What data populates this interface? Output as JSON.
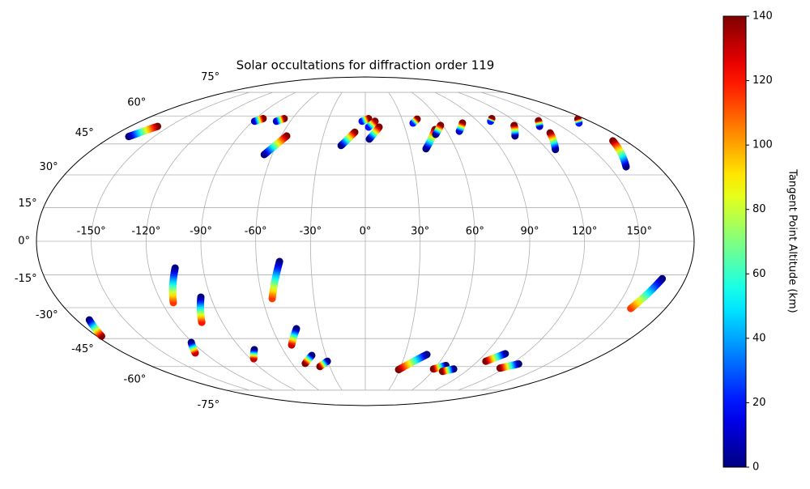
{
  "chart_data": {
    "type": "scatter",
    "projection": "mollweide",
    "title": "Solar occultations for diffraction order 119",
    "xlim": [
      -180,
      180
    ],
    "ylim": [
      -90,
      90
    ],
    "xticks": [
      {
        "value": -150,
        "label": "-150°"
      },
      {
        "value": -120,
        "label": "-120°"
      },
      {
        "value": -90,
        "label": "-90°"
      },
      {
        "value": -60,
        "label": "-60°"
      },
      {
        "value": -30,
        "label": "-30°"
      },
      {
        "value": 0,
        "label": "0°"
      },
      {
        "value": 30,
        "label": "30°"
      },
      {
        "value": 60,
        "label": "60°"
      },
      {
        "value": 90,
        "label": "90°"
      },
      {
        "value": 120,
        "label": "120°"
      },
      {
        "value": 150,
        "label": "150°"
      }
    ],
    "yticks": [
      {
        "value": -75,
        "label": "-75°"
      },
      {
        "value": -60,
        "label": "-60°"
      },
      {
        "value": -45,
        "label": "-45°"
      },
      {
        "value": -30,
        "label": "-30°"
      },
      {
        "value": -15,
        "label": "-15°"
      },
      {
        "value": 0,
        "label": "0°"
      },
      {
        "value": 15,
        "label": "15°"
      },
      {
        "value": 30,
        "label": "30°"
      },
      {
        "value": 45,
        "label": "45°"
      },
      {
        "value": 60,
        "label": "60°"
      },
      {
        "value": 75,
        "label": "75°"
      }
    ],
    "grid": true,
    "colormap": "jet",
    "colorbar_label": "Tangent Point Altitude (km)",
    "clim": [
      0,
      140
    ],
    "cticks": [
      0,
      20,
      40,
      60,
      80,
      100,
      120,
      140
    ],
    "tracks": [
      {
        "lon": [
          -168,
          -159
        ],
        "lat": [
          48.8,
          54.2
        ],
        "alt": [
          0,
          140
        ]
      },
      {
        "lon": [
          -88.7,
          -84
        ],
        "lat": [
          57,
          58.5
        ],
        "alt": [
          10,
          140
        ]
      },
      {
        "lon": [
          -71.2,
          -66.7
        ],
        "lat": [
          57,
          58.5
        ],
        "alt": [
          10,
          140
        ]
      },
      {
        "lon": [
          -65.1,
          -56
        ],
        "lat": [
          39.7,
          49.1
        ],
        "alt": [
          0,
          140
        ]
      },
      {
        "lon": [
          -16.3,
          -7.7
        ],
        "lat": [
          44.2,
          51.1
        ],
        "alt": [
          0,
          140
        ]
      },
      {
        "lon": [
          -2.6,
          2.7
        ],
        "lat": [
          57,
          58.5
        ],
        "alt": [
          20,
          140
        ]
      },
      {
        "lon": [
          2.8,
          10.5
        ],
        "lat": [
          47.5,
          53.8
        ],
        "alt": [
          0,
          140
        ]
      },
      {
        "lon": [
          2.5,
          7.8
        ],
        "lat": [
          53.8,
          57
        ],
        "alt": [
          20,
          140
        ]
      },
      {
        "lon": [
          37.6,
          42.4
        ],
        "lat": [
          56,
          58.2
        ],
        "alt": [
          20,
          140
        ]
      },
      {
        "lon": [
          40.2,
          52
        ],
        "lat": [
          42.6,
          52.5
        ],
        "alt": [
          0,
          140
        ]
      },
      {
        "lon": [
          50.7,
          58
        ],
        "lat": [
          49.9,
          54.7
        ],
        "alt": [
          0,
          140
        ]
      },
      {
        "lon": [
          69.3,
          76.5
        ],
        "lat": [
          51.6,
          56
        ],
        "alt": [
          10,
          140
        ]
      },
      {
        "lon": [
          100.4,
          104
        ],
        "lat": [
          57,
          58.5
        ],
        "alt": [
          20,
          140
        ]
      },
      {
        "lon": [
          106.7,
          114.8
        ],
        "lat": [
          49.1,
          54.7
        ],
        "alt": [
          0,
          140
        ]
      },
      {
        "lon": [
          133.4,
          139.4
        ],
        "lat": [
          54.2,
          57.3
        ],
        "alt": [
          10,
          140
        ]
      },
      {
        "lon": [
          125.4,
          134.5
        ],
        "lat": [
          42.2,
          50.7
        ],
        "alt": [
          0,
          140
        ]
      },
      {
        "lon": [
          168.3,
          173.8
        ],
        "lat": [
          56,
          58.2
        ],
        "alt": [
          20,
          140
        ]
      },
      {
        "lon": [
          160.1,
          171.2
        ],
        "lat": [
          33.8,
          46.6
        ],
        "alt": [
          0,
          140
        ]
      },
      {
        "lon": [
          -105.5,
          -113.3
        ],
        "lat": [
          -11.9,
          -27.7
        ],
        "alt": [
          0,
          115
        ]
      },
      {
        "lon": [
          -95.7,
          -102.9
        ],
        "lat": [
          -25.1,
          -37
        ],
        "alt": [
          0,
          120
        ]
      },
      {
        "lon": [
          -172,
          -176.8
        ],
        "lat": [
          -35.8,
          -43.8
        ],
        "alt": [
          0,
          140
        ]
      },
      {
        "lon": [
          -120.9,
          -126.9
        ],
        "lat": [
          -47,
          -52.5
        ],
        "alt": [
          0,
          130
        ]
      },
      {
        "lon": [
          -80.8,
          -87.3
        ],
        "lat": [
          -50.7,
          -55.6
        ],
        "alt": [
          0,
          130
        ]
      },
      {
        "lon": [
          -47.3,
          -54.4
        ],
        "lat": [
          -9,
          -25.8
        ],
        "alt": [
          0,
          115
        ]
      },
      {
        "lon": [
          -44.5,
          -52
        ],
        "lat": [
          -40.1,
          -48.3
        ],
        "alt": [
          0,
          130
        ]
      },
      {
        "lon": [
          -40.7,
          -49.1
        ],
        "lat": [
          -53.8,
          -58.2
        ],
        "alt": [
          0,
          140
        ]
      },
      {
        "lon": [
          -30.4,
          -38.4
        ],
        "lat": [
          -57,
          -60
        ],
        "alt": [
          0,
          140
        ]
      },
      {
        "lon": [
          46.5,
          29.2
        ],
        "lat": [
          -53.3,
          -61.8
        ],
        "alt": [
          0,
          140
        ]
      },
      {
        "lon": [
          67.4,
          59.3
        ],
        "lat": [
          -59.4,
          -61.4
        ],
        "alt": [
          0,
          140
        ]
      },
      {
        "lon": [
          76.9,
          69.1
        ],
        "lat": [
          -61.4,
          -62.8
        ],
        "alt": [
          0,
          140
        ]
      },
      {
        "lon": [
          105.1,
          96.5
        ],
        "lat": [
          -52.9,
          -57
        ],
        "alt": [
          0,
          140
        ]
      },
      {
        "lon": [
          126.1,
          116
        ],
        "lat": [
          -58.5,
          -60.9
        ],
        "alt": [
          0,
          140
        ]
      },
      {
        "lon": [
          166.9,
          159.2
        ],
        "lat": [
          -16.7,
          -30.4
        ],
        "alt": [
          0,
          115
        ]
      }
    ]
  }
}
